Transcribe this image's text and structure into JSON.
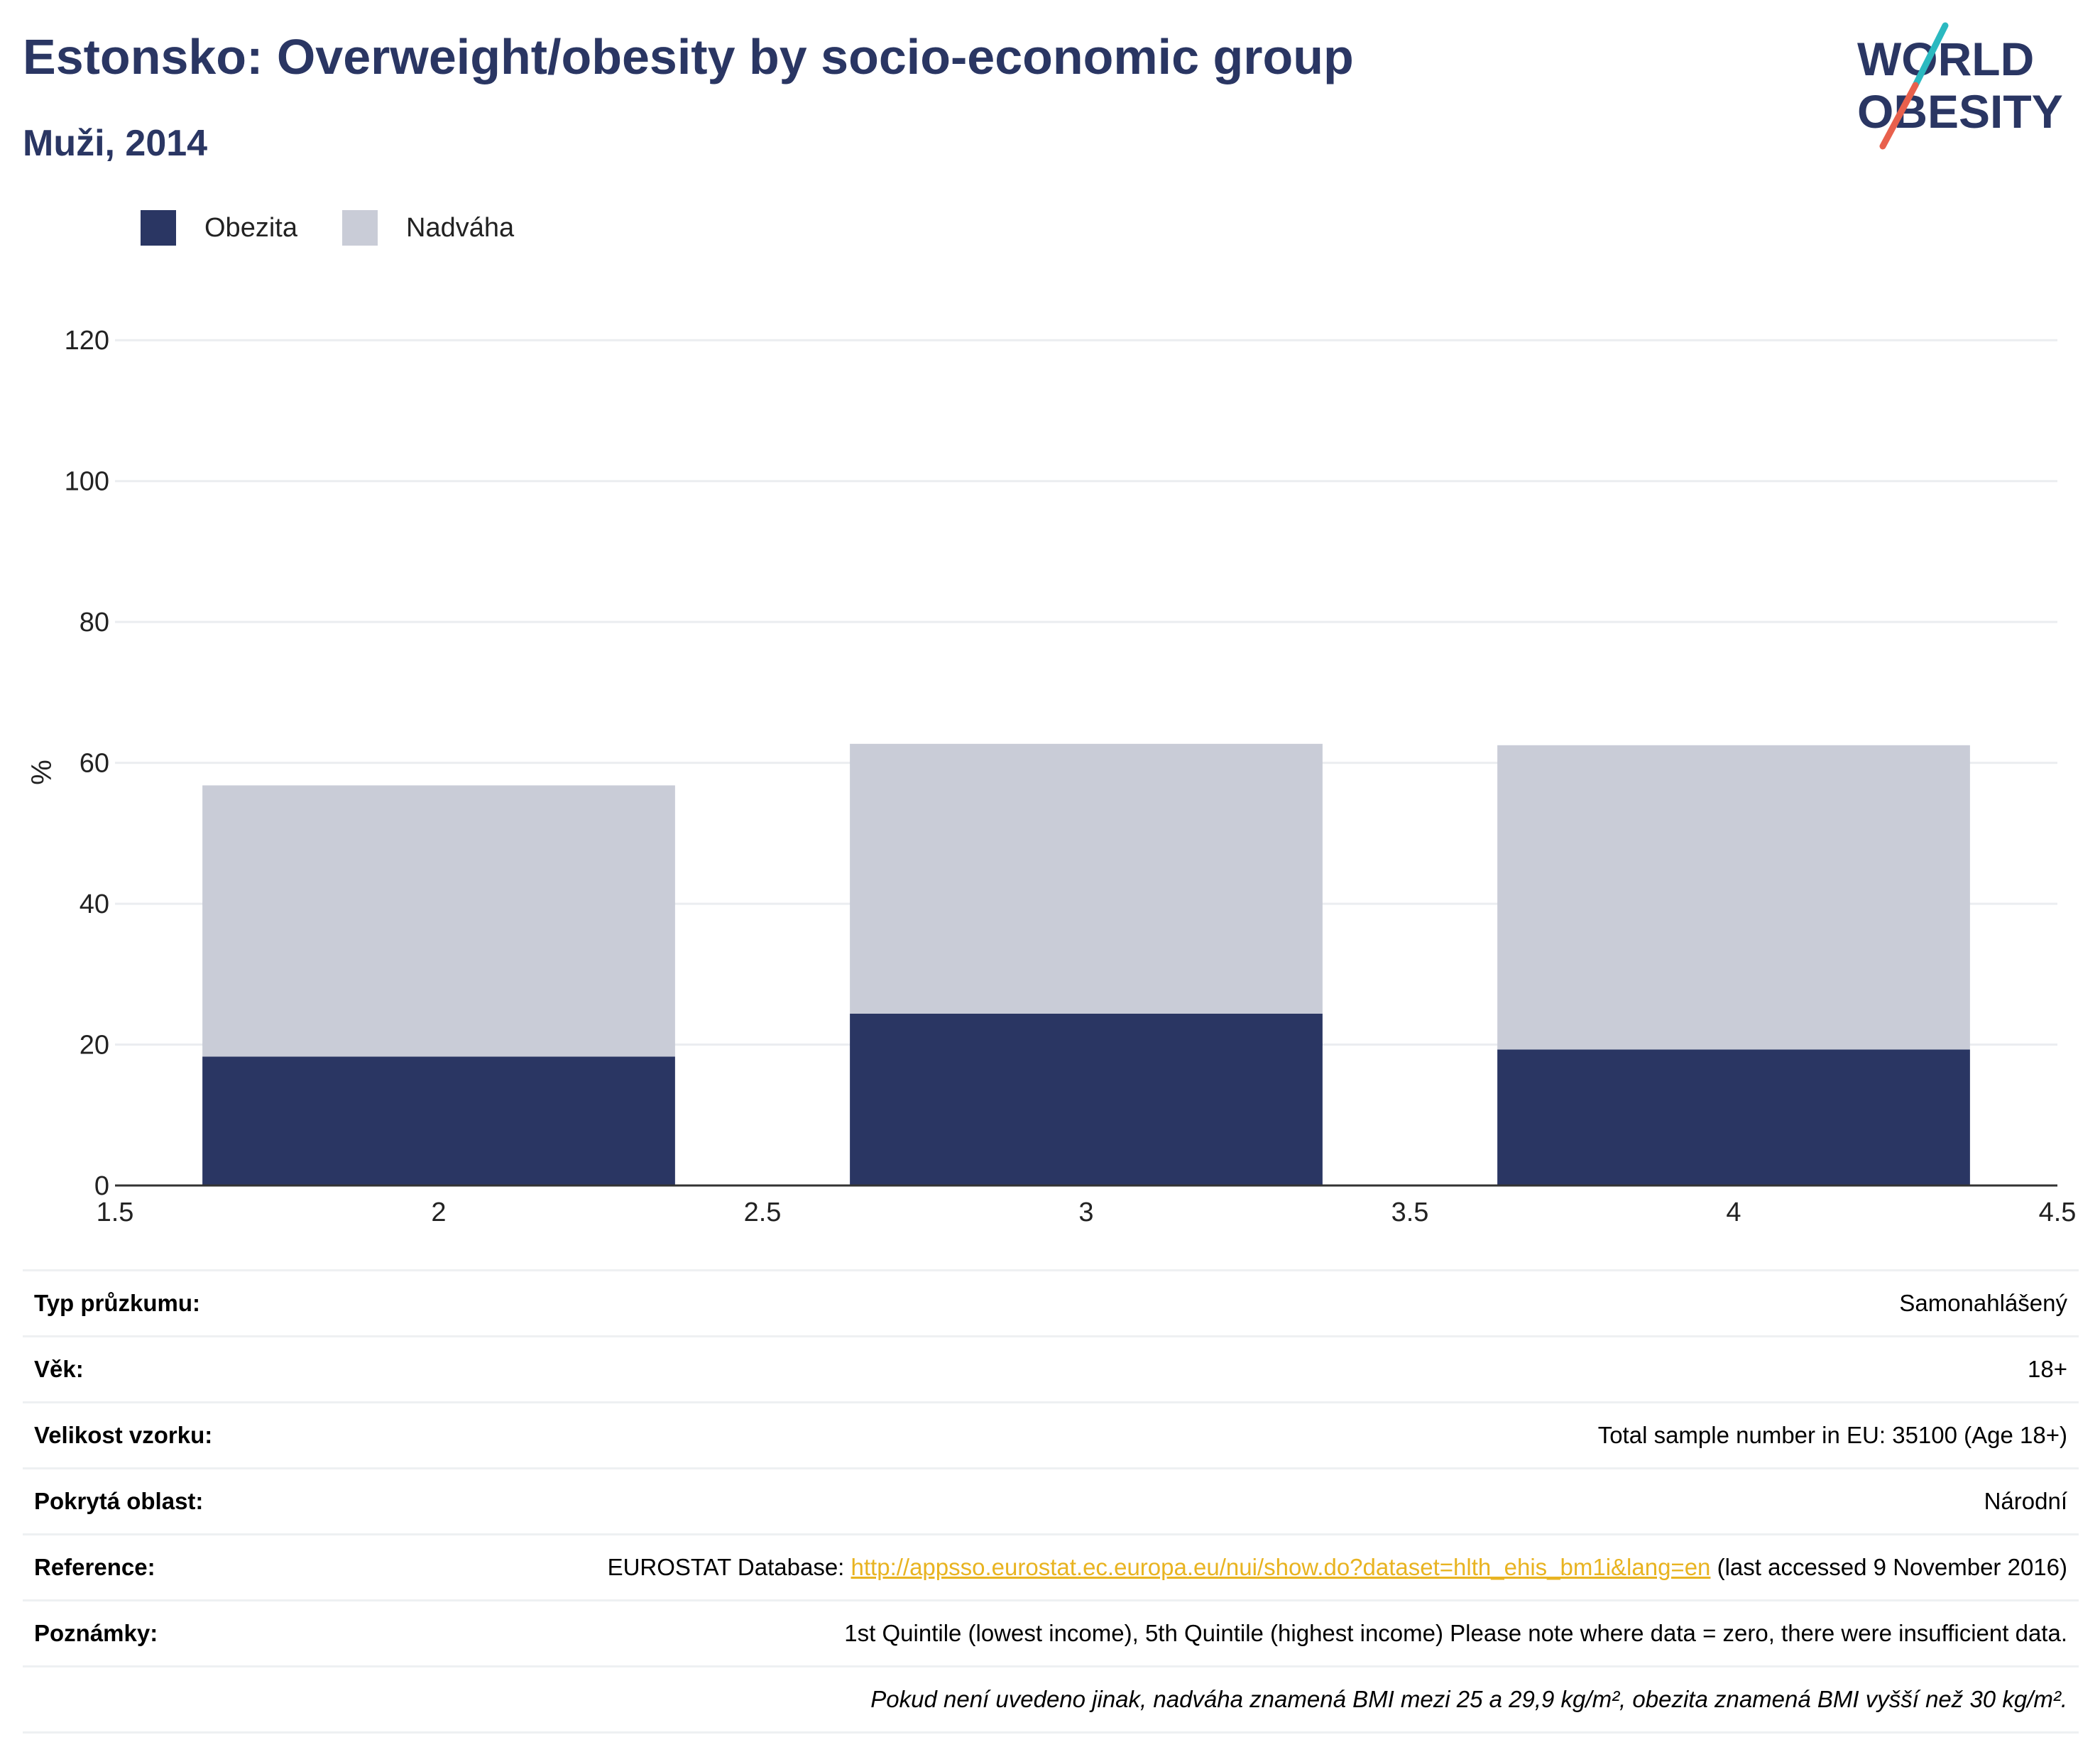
{
  "title": "Estonsko: Overweight/obesity by socio-economic group",
  "subtitle": "Muži, 2014",
  "logo": {
    "line1": "WORLD",
    "line2": "OBESITY",
    "accent_colors": [
      "#2bb9c0",
      "#e8604c"
    ]
  },
  "colors": {
    "obesity": "#2a3663",
    "overweight": "#c9ccd7",
    "title": "#2a3663"
  },
  "legend": [
    {
      "label": "Obezita",
      "color": "#2a3663"
    },
    {
      "label": "Nadváha",
      "color": "#c9ccd7"
    }
  ],
  "chart_data": {
    "type": "bar",
    "stacked": true,
    "x": [
      2,
      3,
      4
    ],
    "series": [
      {
        "name": "Obezita",
        "values": [
          18.3,
          24.4,
          19.3
        ]
      },
      {
        "name": "Nadváha",
        "values": [
          38.5,
          38.3,
          43.2
        ]
      }
    ],
    "ylabel": "%",
    "xlim": [
      1.5,
      4.5
    ],
    "ylim": [
      0,
      130
    ],
    "xticks": [
      "1.5",
      "2",
      "2.5",
      "3",
      "3.5",
      "4",
      "4.5"
    ],
    "yticks": [
      "0",
      "20",
      "40",
      "60",
      "80",
      "100",
      "120"
    ],
    "grid": true,
    "legend_position": "top-left"
  },
  "info": {
    "rows": [
      {
        "key": "Typ průzkumu:",
        "value": "Samonahlášený"
      },
      {
        "key": "Věk:",
        "value": "18+"
      },
      {
        "key": "Velikost vzorku:",
        "value": "Total sample number in EU: 35100 (Age 18+)"
      },
      {
        "key": "Pokrytá oblast:",
        "value": "Národní"
      }
    ],
    "reference": {
      "key": "Reference:",
      "prefix": "EUROSTAT Database: ",
      "link": "http://appsso.eurostat.ec.europa.eu/nui/show.do?dataset=hlth_ehis_bm1i&lang=en",
      "suffix": " (last accessed 9 November 2016)"
    },
    "notes": {
      "key": "Poznámky:",
      "value": "1st Quintile (lowest income), 5th Quintile (highest income) Please note where data = zero, there were insufficient data."
    },
    "footnote": "Pokud není uvedeno jinak, nadváha znamená BMI mezi 25 a 29,9 kg/m², obezita znamená BMI vyšší než 30 kg/m²."
  }
}
